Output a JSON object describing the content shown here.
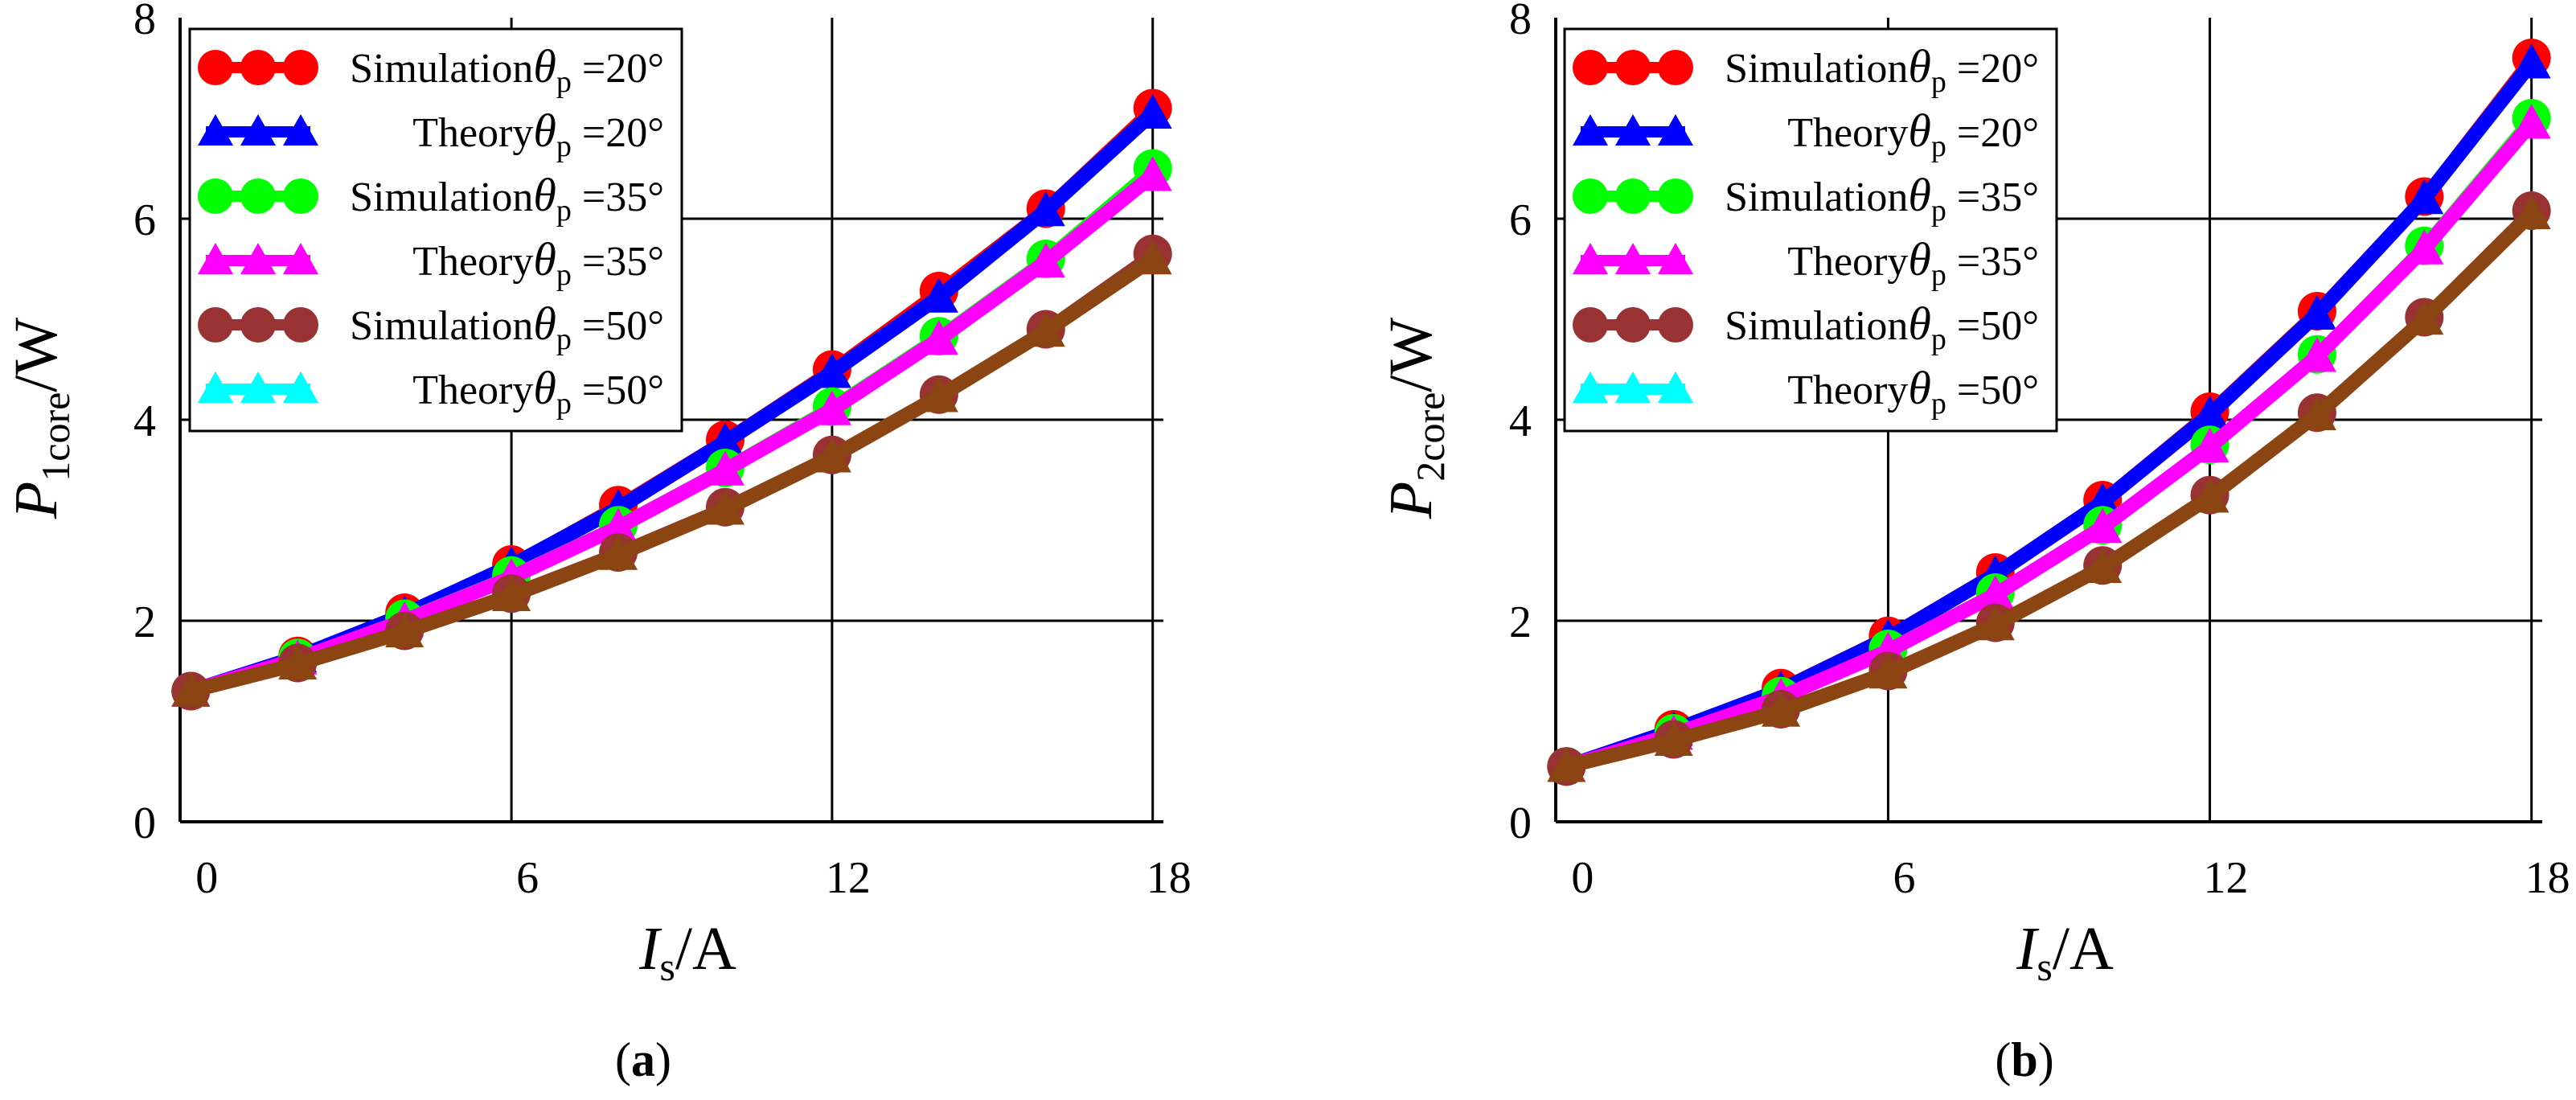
{
  "figure": {
    "panels": [
      "(a)",
      "(b)"
    ]
  },
  "style": {
    "series_colors": {
      "sim20": "#ff0000",
      "th20": "#0000ff",
      "sim35": "#00ff00",
      "th35": "#ff00ff",
      "sim50": "#993333",
      "th50": "#00ffff",
      "th50_line": "#8b4513"
    },
    "marker_names": {
      "Simulation": "circle",
      "Theory": "triangle"
    }
  },
  "chart_data": [
    {
      "type": "line",
      "panel_label": "(a)",
      "panel_letter": "a",
      "ylabel_main": "P",
      "ylabel_sub": "1core",
      "ylabel_unit": "/W",
      "xlabel_main": "I",
      "xlabel_sub": "s",
      "xlabel_unit": "/A",
      "xlim": [
        -0.2,
        18.2
      ],
      "ylim": [
        0,
        8
      ],
      "xticks": [
        0,
        6,
        12,
        18
      ],
      "yticks": [
        0,
        2,
        4,
        6,
        8
      ],
      "grid": true,
      "legend_position": "top-left",
      "x": [
        0,
        2,
        4,
        6,
        8,
        10,
        12,
        14,
        16,
        18
      ],
      "series": [
        {
          "key": "sim20",
          "kind": "Simulation",
          "angle": "20°",
          "values": [
            1.3,
            1.65,
            2.08,
            2.56,
            3.15,
            3.8,
            4.5,
            5.28,
            6.1,
            7.1
          ]
        },
        {
          "key": "th20",
          "kind": "Theory",
          "angle": "20°",
          "values": [
            1.3,
            1.64,
            2.06,
            2.55,
            3.12,
            3.78,
            4.47,
            5.22,
            6.08,
            7.05
          ]
        },
        {
          "key": "sim35",
          "kind": "Simulation",
          "angle": "35°",
          "values": [
            1.3,
            1.63,
            2.02,
            2.45,
            2.95,
            3.52,
            4.13,
            4.83,
            5.6,
            6.5
          ]
        },
        {
          "key": "th35",
          "kind": "Theory",
          "angle": "35°",
          "values": [
            1.3,
            1.62,
            2.0,
            2.43,
            2.93,
            3.5,
            4.1,
            4.8,
            5.57,
            6.43
          ]
        },
        {
          "key": "sim50",
          "kind": "Simulation",
          "angle": "50°",
          "values": [
            1.3,
            1.58,
            1.9,
            2.27,
            2.68,
            3.13,
            3.65,
            4.25,
            4.9,
            5.65
          ]
        },
        {
          "key": "th50",
          "kind": "Theory",
          "angle": "50°",
          "values": [
            1.3,
            1.57,
            1.89,
            2.25,
            2.66,
            3.11,
            3.63,
            4.23,
            4.88,
            5.6
          ]
        }
      ]
    },
    {
      "type": "line",
      "panel_label": "(b)",
      "panel_letter": "b",
      "ylabel_main": "P",
      "ylabel_sub": "2core",
      "ylabel_unit": "/W",
      "xlabel_main": "I",
      "xlabel_sub": "s",
      "xlabel_unit": "/A",
      "xlim": [
        -0.2,
        18.2
      ],
      "ylim": [
        0,
        8
      ],
      "xticks": [
        0,
        6,
        12,
        18
      ],
      "yticks": [
        0,
        2,
        4,
        6,
        8
      ],
      "grid": true,
      "legend_position": "top-left",
      "x": [
        0,
        2,
        4,
        6,
        8,
        10,
        12,
        14,
        16,
        18
      ],
      "series": [
        {
          "key": "sim20",
          "kind": "Simulation",
          "angle": "20°",
          "values": [
            0.55,
            0.92,
            1.33,
            1.85,
            2.48,
            3.2,
            4.08,
            5.08,
            6.22,
            7.6
          ]
        },
        {
          "key": "th20",
          "kind": "Theory",
          "angle": "20°",
          "values": [
            0.55,
            0.91,
            1.31,
            1.83,
            2.46,
            3.18,
            4.05,
            5.05,
            6.2,
            7.55
          ]
        },
        {
          "key": "sim35",
          "kind": "Simulation",
          "angle": "35°",
          "values": [
            0.55,
            0.88,
            1.25,
            1.72,
            2.28,
            2.95,
            3.75,
            4.65,
            5.73,
            7.0
          ]
        },
        {
          "key": "th35",
          "kind": "Theory",
          "angle": "35°",
          "values": [
            0.55,
            0.87,
            1.24,
            1.7,
            2.26,
            2.93,
            3.73,
            4.63,
            5.7,
            6.95
          ]
        },
        {
          "key": "sim50",
          "kind": "Simulation",
          "angle": "50°",
          "values": [
            0.55,
            0.82,
            1.12,
            1.5,
            1.98,
            2.55,
            3.25,
            4.07,
            5.02,
            6.08
          ]
        },
        {
          "key": "th50",
          "kind": "Theory",
          "angle": "50°",
          "values": [
            0.55,
            0.81,
            1.1,
            1.48,
            1.96,
            2.53,
            3.23,
            4.05,
            5.0,
            6.05
          ]
        }
      ]
    }
  ]
}
